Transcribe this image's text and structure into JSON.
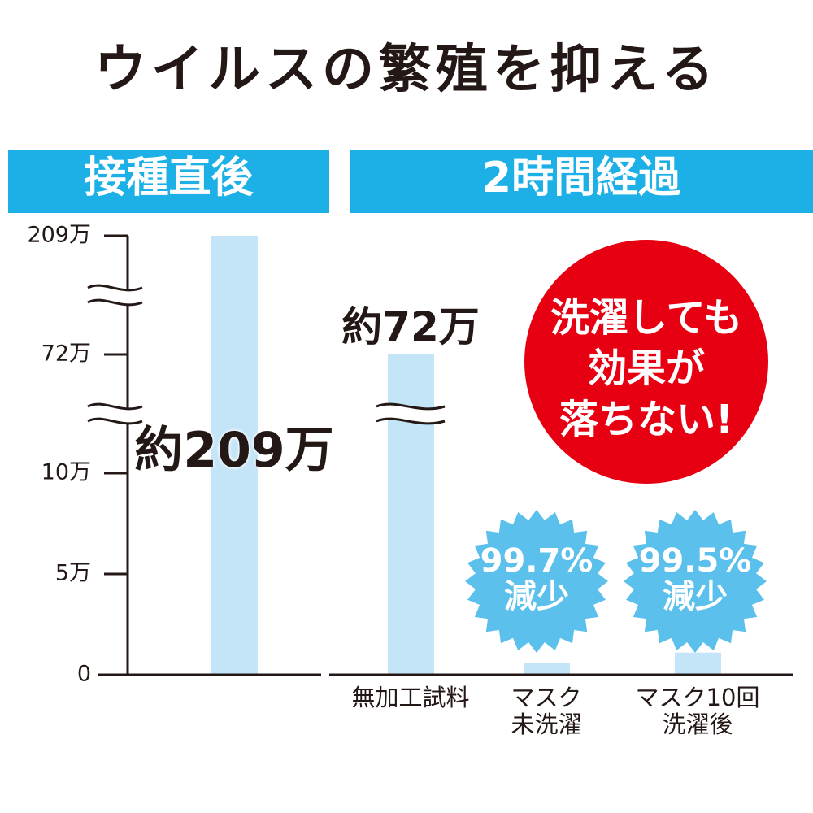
{
  "title": "ウイルスの繁殖を抑える",
  "chart_data": [
    {
      "type": "bar",
      "title": "接種直後",
      "categories": [
        null
      ],
      "values": [
        209
      ],
      "value_labels": [
        "約209万"
      ],
      "color": "#c3e5f7",
      "ylim": [
        0,
        209
      ],
      "yticks": [
        {
          "value": 209,
          "label": "209万"
        },
        {
          "value": 72,
          "label": "72万"
        },
        {
          "value": 10,
          "label": "10万"
        },
        {
          "value": 5,
          "label": "5万"
        },
        0
      ],
      "axis_breaks": [
        [
          10,
          72
        ],
        [
          72,
          209
        ]
      ]
    },
    {
      "type": "bar",
      "title": "2時間経過",
      "categories": [
        "無加工試料",
        "マスク\n未洗濯",
        "マスク10回\n洗濯後"
      ],
      "values": [
        72,
        0.6,
        1.1
      ],
      "value_labels": [
        "約72万",
        null,
        null
      ],
      "color": "#c3e5f7",
      "ylim": [
        0,
        209
      ],
      "axis_breaks": [
        [
          10,
          72
        ],
        [
          72,
          209
        ]
      ],
      "annotations": [
        "洗濯しても\n効果が\n落ちない!",
        "99.7%\n減少",
        "99.5%\n減少"
      ]
    }
  ]
}
